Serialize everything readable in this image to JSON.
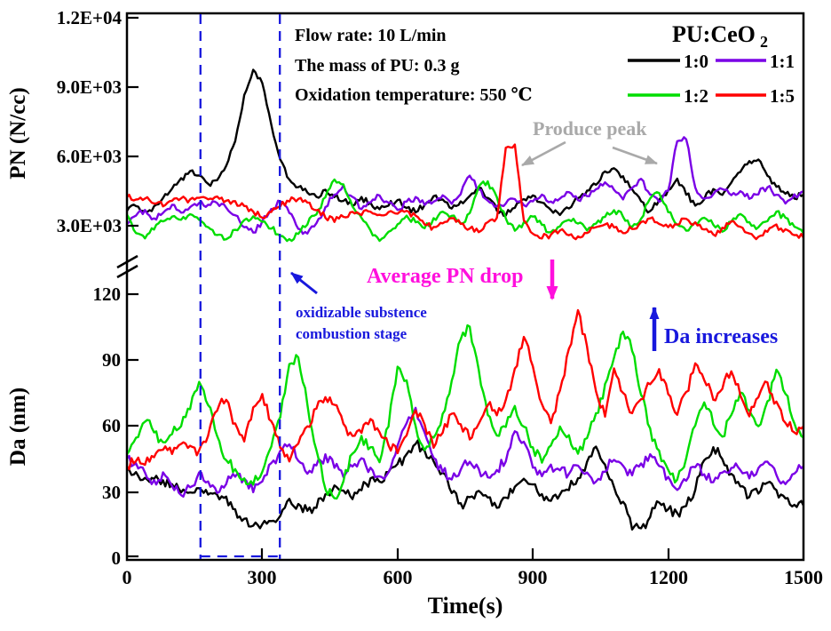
{
  "axes": {
    "x": {
      "label": "Time(s)",
      "ticks": [
        "0",
        "300",
        "600",
        "900",
        "1200",
        "1500"
      ]
    },
    "pn": {
      "label": "PN (N/cc)",
      "ticks": [
        "1.2E+04",
        "9.0E+03",
        "6.0E+03",
        "3.0E+03"
      ]
    },
    "da": {
      "label": "Da (nm)",
      "ticks": [
        "120",
        "90",
        "60",
        "30",
        "0"
      ]
    }
  },
  "conditions": {
    "line1": "Flow rate: 10 L/min",
    "line2": "The mass of PU: 0.3 g",
    "line3": "Oxidation temperature: 550 ℃"
  },
  "legend": {
    "title_main": "PU:CeO",
    "title_sub": "2",
    "items": [
      {
        "label": "1:0",
        "color": "#000000"
      },
      {
        "label": "1:1",
        "color": "#7a00e6"
      },
      {
        "label": "1:2",
        "color": "#00dd00"
      },
      {
        "label": "1:5",
        "color": "#ff0000"
      }
    ]
  },
  "annotations": {
    "produce_peak": "Produce peak",
    "average_pn_drop": "Average PN drop",
    "oxidizable_line1": "oxidizable substence",
    "oxidizable_line2": "combustion stage",
    "da_increases": "Da increases"
  },
  "palette": {
    "black": "#000000",
    "purple": "#7a00e6",
    "green": "#00dd00",
    "red": "#ff0000",
    "annotation_blue": "#1818dd",
    "stage_line_blue": "#1818dd",
    "magenta": "#ff10dd",
    "gray": "#a9a9a9"
  },
  "chart_data": {
    "type": "line",
    "xlabel": "Time(s)",
    "x_range": [
      0,
      1500
    ],
    "x_step_s": 20,
    "grid": false,
    "legend_position": "top-right",
    "stage_region_s": {
      "start": 163,
      "end": 339,
      "style": "dashed",
      "color": "#1818dd"
    },
    "panels": [
      {
        "name": "PN",
        "ylabel": "PN (N/cc)",
        "ylim": [
          2000,
          12000
        ],
        "yticks": [
          3000,
          6000,
          9000,
          12000
        ],
        "axis_break_below": 3000,
        "series": [
          {
            "name": "1:0",
            "color": "#000000",
            "values": [
              3700,
              3900,
              3600,
              3800,
              4200,
              4600,
              5000,
              5400,
              5200,
              4800,
              5000,
              5600,
              6600,
              8600,
              9800,
              9200,
              7400,
              5800,
              5000,
              4700,
              4400,
              4200,
              4500,
              4300,
              4100,
              3900,
              4200,
              4000,
              3700,
              3900,
              4100,
              3800,
              3600,
              3900,
              4300,
              4100,
              3800,
              4000,
              4300,
              4600,
              4200,
              3700,
              3500,
              3800,
              4100,
              4300,
              4000,
              3700,
              3500,
              3800,
              4200,
              4500,
              4800,
              5300,
              5500,
              5100,
              4600,
              4000,
              3600,
              4100,
              4500,
              5000,
              4400,
              3900,
              4200,
              4600,
              4300,
              4800,
              5300,
              5800,
              5900,
              5200,
              4700,
              4400,
              4200,
              4400
            ]
          },
          {
            "name": "1:1",
            "color": "#7a00e6",
            "values": [
              3100,
              3400,
              3700,
              3300,
              3600,
              3900,
              3600,
              3800,
              4000,
              3900,
              4000,
              3800,
              3500,
              2900,
              2700,
              3200,
              3700,
              4100,
              3600,
              2800,
              2600,
              3100,
              3800,
              4400,
              4700,
              4200,
              3700,
              4000,
              4300,
              4000,
              3700,
              4000,
              4200,
              3900,
              4100,
              4300,
              4000,
              4400,
              5200,
              4600,
              4100,
              3800,
              4000,
              4200,
              3900,
              4100,
              4300,
              4000,
              4200,
              4400,
              4100,
              4300,
              4600,
              4900,
              4500,
              4200,
              4700,
              5000,
              4400,
              4100,
              4500,
              6700,
              6800,
              4600,
              4200,
              4400,
              4600,
              4300,
              4500,
              4200,
              4400,
              4700,
              4300,
              4000,
              4300,
              4500
            ]
          },
          {
            "name": "1:2",
            "color": "#00dd00",
            "values": [
              3500,
              2700,
              2400,
              2900,
              3200,
              3400,
              3300,
              3500,
              3300,
              3000,
              2600,
              2400,
              2800,
              3200,
              3400,
              3200,
              2900,
              2600,
              2400,
              2700,
              3100,
              3500,
              4200,
              5000,
              4800,
              3900,
              3300,
              2800,
              2400,
              2700,
              3100,
              3400,
              3200,
              2900,
              3300,
              3600,
              3400,
              3100,
              3500,
              4700,
              4900,
              4200,
              3300,
              2800,
              3100,
              3400,
              3000,
              2700,
              3000,
              3300,
              3100,
              2800,
              3100,
              3400,
              3700,
              3400,
              3000,
              3300,
              4200,
              4400,
              3600,
              3100,
              2800,
              3100,
              3400,
              3100,
              2800,
              3200,
              3500,
              3200,
              2900,
              3200,
              3600,
              3300,
              2900,
              2700
            ]
          },
          {
            "name": "1:5",
            "color": "#ff0000",
            "values": [
              4300,
              4100,
              4200,
              4000,
              3900,
              4100,
              4200,
              4100,
              4200,
              4100,
              4200,
              4100,
              4000,
              3800,
              3600,
              3400,
              3600,
              3900,
              4100,
              4200,
              4000,
              3700,
              3400,
              3200,
              3400,
              3600,
              3500,
              3600,
              3500,
              3600,
              3500,
              3600,
              3400,
              3100,
              2900,
              3100,
              3300,
              3100,
              2900,
              2700,
              3100,
              3300,
              6400,
              6500,
              3200,
              2700,
              2500,
              2600,
              2800,
              2600,
              2500,
              2700,
              2900,
              3100,
              2900,
              2700,
              2900,
              3100,
              3300,
              3100,
              2900,
              3100,
              3300,
              3100,
              2800,
              2600,
              2900,
              3200,
              3000,
              2700,
              2500,
              2800,
              3000,
              2800,
              2600,
              2500
            ]
          }
        ]
      },
      {
        "name": "Da",
        "ylabel": "Da (nm)",
        "ylim": [
          0,
          120
        ],
        "yticks": [
          0,
          30,
          60,
          90,
          120
        ],
        "series": [
          {
            "name": "1:0",
            "color": "#000000",
            "values": [
              40,
              38,
              36,
              37,
              35,
              33,
              31,
              29,
              31,
              30,
              28,
              27,
              22,
              17,
              15,
              15,
              16,
              20,
              26,
              24,
              21,
              24,
              28,
              32,
              30,
              27,
              31,
              36,
              34,
              38,
              42,
              47,
              52,
              49,
              44,
              38,
              30,
              24,
              27,
              31,
              28,
              24,
              28,
              33,
              37,
              34,
              29,
              25,
              28,
              32,
              36,
              44,
              50,
              42,
              33,
              25,
              14,
              13,
              19,
              25,
              22,
              20,
              24,
              31,
              44,
              50,
              46,
              38,
              32,
              28,
              30,
              34,
              30,
              26,
              24,
              25
            ]
          },
          {
            "name": "1:1",
            "color": "#7a00e6",
            "values": [
              45,
              42,
              38,
              35,
              38,
              33,
              28,
              32,
              38,
              35,
              30,
              34,
              38,
              35,
              31,
              35,
              42,
              48,
              52,
              45,
              38,
              42,
              46,
              42,
              38,
              42,
              45,
              40,
              36,
              40,
              52,
              62,
              68,
              58,
              45,
              40,
              36,
              40,
              44,
              40,
              36,
              40,
              45,
              58,
              52,
              42,
              38,
              42,
              40,
              38,
              42,
              38,
              35,
              40,
              45,
              42,
              38,
              42,
              48,
              42,
              36,
              32,
              36,
              42,
              38,
              34,
              38,
              42,
              40,
              36,
              40,
              44,
              38,
              34,
              38,
              42
            ]
          },
          {
            "name": "1:2",
            "color": "#00dd00",
            "values": [
              48,
              55,
              63,
              58,
              52,
              57,
              60,
              68,
              79,
              70,
              55,
              45,
              40,
              36,
              34,
              38,
              50,
              65,
              88,
              92,
              70,
              50,
              32,
              27,
              35,
              47,
              55,
              50,
              44,
              60,
              88,
              80,
              60,
              48,
              55,
              65,
              80,
              100,
              105,
              85,
              65,
              55,
              60,
              68,
              60,
              50,
              44,
              50,
              60,
              55,
              48,
              55,
              65,
              78,
              90,
              103,
              95,
              75,
              58,
              48,
              40,
              35,
              45,
              60,
              70,
              62,
              55,
              65,
              75,
              68,
              60,
              70,
              85,
              75,
              60,
              55
            ]
          },
          {
            "name": "1:5",
            "color": "#ff0000",
            "values": [
              42,
              45,
              43,
              46,
              50,
              48,
              52,
              50,
              48,
              55,
              68,
              72,
              60,
              52,
              68,
              74,
              62,
              50,
              45,
              52,
              60,
              68,
              74,
              70,
              60,
              55,
              58,
              62,
              58,
              52,
              48,
              55,
              68,
              60,
              50,
              58,
              66,
              60,
              55,
              62,
              70,
              65,
              72,
              85,
              100,
              88,
              70,
              62,
              75,
              95,
              112,
              95,
              75,
              65,
              85,
              75,
              65,
              72,
              80,
              85,
              75,
              65,
              75,
              88,
              82,
              72,
              78,
              85,
              75,
              65,
              72,
              80,
              70,
              62,
              58,
              60
            ]
          }
        ]
      }
    ]
  }
}
